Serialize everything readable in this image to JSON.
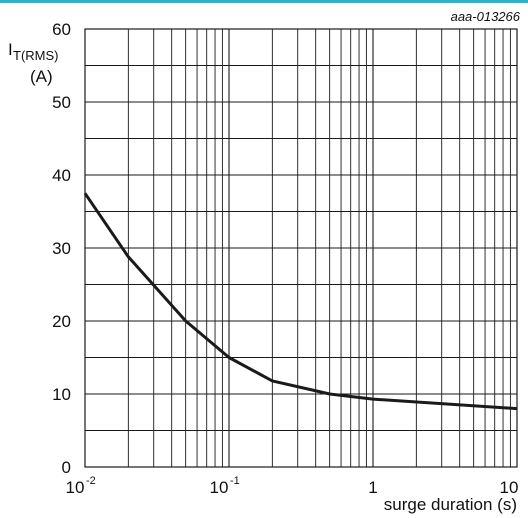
{
  "figure_code": "aaa-013266",
  "colors": {
    "top_rule": "#2ab3c9",
    "line": "#1a1a1a",
    "grid": "#1a1a1a"
  },
  "chart_data": {
    "type": "line",
    "x_scale": "log",
    "xlim": [
      0.01,
      10
    ],
    "ylim": [
      0,
      60
    ],
    "grid": true,
    "ylabel": {
      "main": "I",
      "subscript": "T(RMS)",
      "unit": "(A)"
    },
    "xlabel": "surge duration (s)",
    "y_ticks": [
      {
        "v": 0,
        "label": "0"
      },
      {
        "v": 10,
        "label": "10"
      },
      {
        "v": 20,
        "label": "20"
      },
      {
        "v": 30,
        "label": "30"
      },
      {
        "v": 40,
        "label": "40"
      },
      {
        "v": 50,
        "label": "50"
      },
      {
        "v": 60,
        "label": "60"
      }
    ],
    "x_ticks": [
      {
        "v": 0.01,
        "base": "10",
        "exp": "-2"
      },
      {
        "v": 0.1,
        "base": "10",
        "exp": "-1"
      },
      {
        "v": 1,
        "base": "1",
        "exp": ""
      },
      {
        "v": 10,
        "base": "10",
        "exp": ""
      }
    ],
    "series": [
      {
        "x": [
          0.01,
          0.02,
          0.05,
          0.1,
          0.2,
          0.5,
          1,
          10
        ],
        "y": [
          37.5,
          28.8,
          20.0,
          15.0,
          11.8,
          10.0,
          9.3,
          8.0
        ]
      }
    ]
  }
}
